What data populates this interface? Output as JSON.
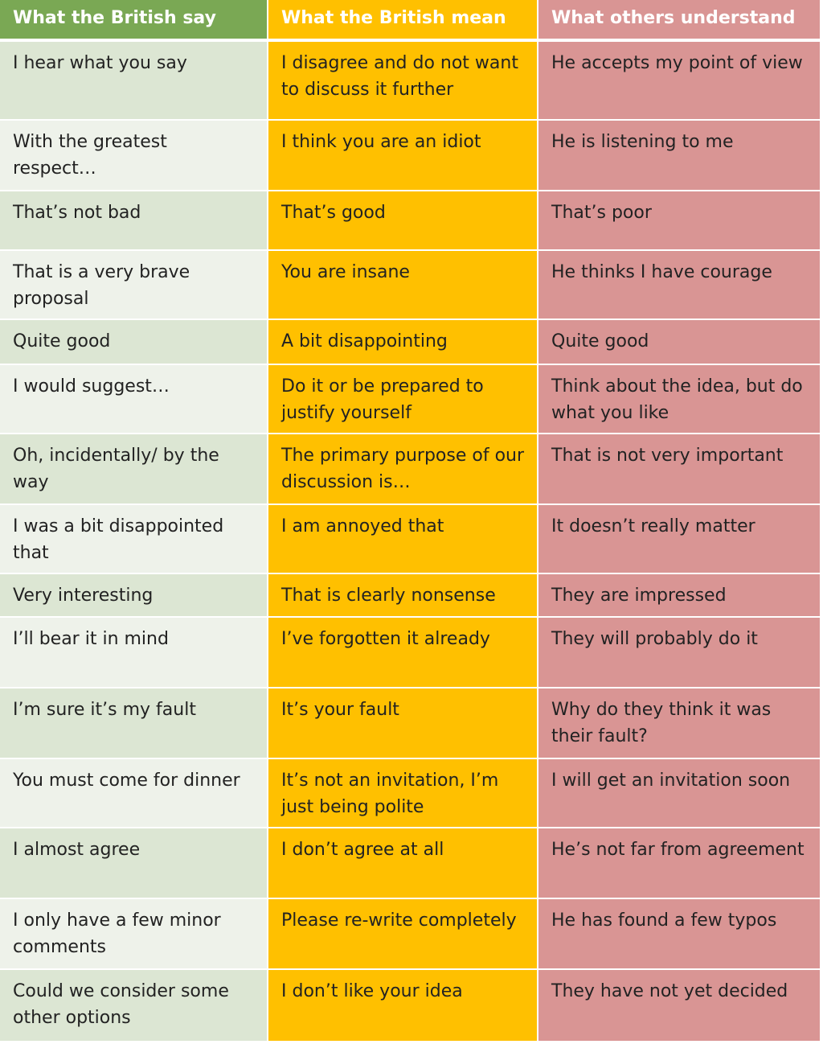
{
  "table": {
    "header": [
      "What the British say",
      "What the British mean",
      "What others understand"
    ],
    "rows": [
      [
        "I hear what you say",
        "I disagree and do not want to discuss it further",
        "He accepts my point of view"
      ],
      [
        "With the greatest respect…",
        "I think you are an idiot",
        "He is listening to me"
      ],
      [
        "That’s not bad",
        "That’s good",
        "That’s poor"
      ],
      [
        "That is a very brave proposal",
        "You are insane",
        "He thinks I have courage"
      ],
      [
        "Quite good",
        "A bit disappointing",
        "Quite good"
      ],
      [
        "I would suggest…",
        "Do it or be prepared to justify yourself",
        "Think about the idea, but do what you like"
      ],
      [
        "Oh, incidentally/ by the way",
        "The primary purpose of our discussion is…",
        "That is not very important"
      ],
      [
        "I was a bit disappointed that",
        "I am annoyed that",
        "It doesn’t really matter"
      ],
      [
        "Very interesting",
        "That is clearly nonsense",
        "They are impressed"
      ],
      [
        "I’ll bear it in mind",
        "I’ve forgotten it already",
        "They will probably do it"
      ],
      [
        "I’m sure it’s my fault",
        "It’s your fault",
        "Why do they think it was their fault?"
      ],
      [
        "You must come for dinner",
        "It’s not an invitation, I’m just being polite",
        "I will get an invitation soon"
      ],
      [
        "I almost agree",
        "I don’t agree at all",
        "He’s not far from agreement"
      ],
      [
        "I only have a few minor comments",
        "Please re-write completely",
        "He has found a few typos"
      ],
      [
        "Could we consider some other options",
        "I don’t like your idea",
        "They have not yet decided"
      ]
    ]
  }
}
